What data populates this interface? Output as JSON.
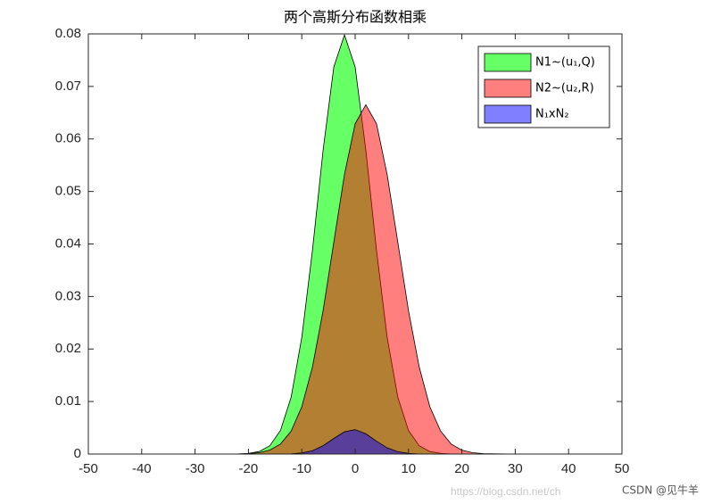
{
  "chart_data": {
    "type": "area",
    "title": "两个高斯分布函数相乘",
    "x": [
      -50,
      -40,
      -30,
      -24,
      -22,
      -20,
      -18,
      -16,
      -14,
      -12,
      -10,
      -8,
      -6,
      -4,
      -2,
      0,
      2,
      4,
      6,
      8,
      10,
      12,
      14,
      16,
      18,
      20,
      22,
      24,
      30,
      40,
      50
    ],
    "series": [
      {
        "name": "N1~(u₁,Q)",
        "color": "#00ff00",
        "opacity": 0.6,
        "values": [
          0,
          0,
          0,
          5e-06,
          2.68e-05,
          0.000122,
          0.000477,
          0.00158,
          0.00448,
          0.0108,
          0.0222,
          0.0388,
          0.0579,
          0.0737,
          0.0798,
          0.0737,
          0.0579,
          0.0388,
          0.0222,
          0.0108,
          0.00448,
          0.00158,
          0.000477,
          0.000122,
          2.68e-05,
          5e-06,
          0,
          0,
          0,
          0,
          0
        ]
      },
      {
        "name": "N2~(u₂,R)",
        "color": "#ff0000",
        "opacity": 0.5,
        "values": [
          0,
          0,
          0,
          5.6e-06,
          2.23e-05,
          8.01e-05,
          0.000257,
          0.000739,
          0.0019,
          0.00437,
          0.009,
          0.01658,
          0.02733,
          0.04033,
          0.05324,
          0.0629,
          0.0665,
          0.0629,
          0.0532,
          0.0403,
          0.0273,
          0.0166,
          0.009,
          0.0044,
          0.0019,
          0.00074,
          0.00026,
          8e-05,
          1.2e-06,
          0,
          0
        ]
      },
      {
        "name": "N₁xN₂",
        "color": "#0000ff",
        "opacity": 0.5,
        "values": [
          0,
          0,
          0,
          0,
          0,
          0,
          0,
          0,
          0,
          4.73e-05,
          0.0002,
          0.00064,
          0.00159,
          0.00297,
          0.00425,
          0.00464,
          0.00386,
          0.00245,
          0.00118,
          0.00044,
          0.00012,
          2.6e-05,
          0,
          0,
          0,
          0,
          0,
          0,
          0,
          0,
          0
        ]
      }
    ],
    "xlim": [
      -50,
      50
    ],
    "xticks": [
      -50,
      -40,
      -30,
      -20,
      -10,
      0,
      10,
      20,
      30,
      40,
      50
    ],
    "ylim": [
      0,
      0.08
    ],
    "yticks": [
      0,
      0.01,
      0.02,
      0.03,
      0.04,
      0.05,
      0.06,
      0.07,
      0.08
    ],
    "legend": "upper right"
  },
  "watermark": [
    "https://blog.csdn.net/ch",
    "CSDN @见牛羊"
  ]
}
